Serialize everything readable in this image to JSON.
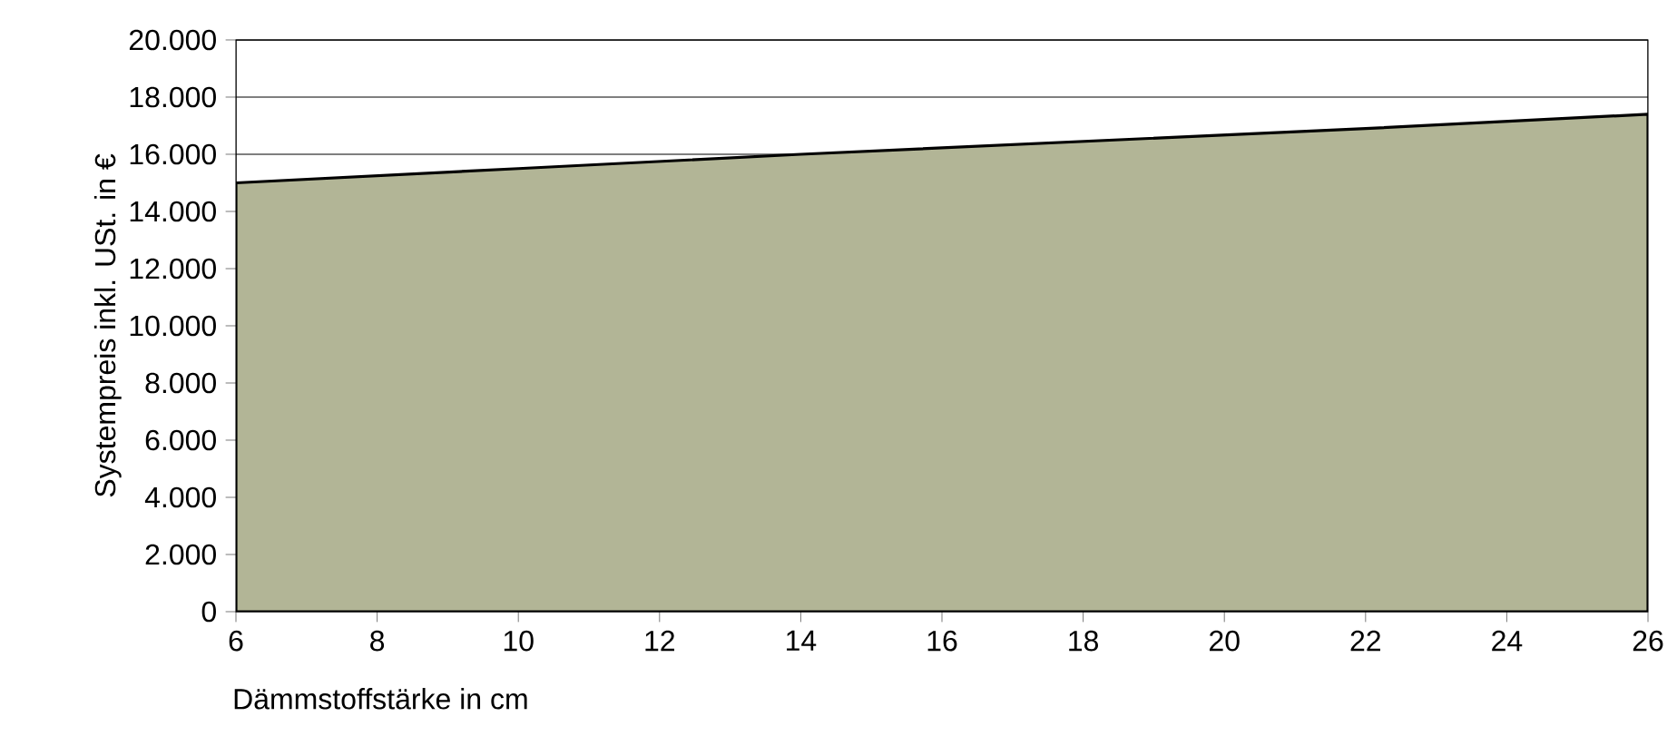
{
  "chart_data": {
    "type": "area",
    "xlabel": "Dämmstoffstärke in cm",
    "ylabel": "Systempreis inkl. USt. in €",
    "x": [
      6,
      10,
      14,
      18,
      22,
      26
    ],
    "series": [
      {
        "color": "#b2b596",
        "values": [
          15000,
          15500,
          16000,
          16450,
          16900,
          17400
        ]
      }
    ],
    "xlim": [
      6,
      26
    ],
    "xticks": [
      6,
      8,
      10,
      12,
      14,
      16,
      18,
      20,
      22,
      24,
      26
    ],
    "ylim": [
      0,
      20000
    ],
    "yticks": [
      0,
      {
        "value": 2000,
        "label": "2.000"
      },
      {
        "value": 4000,
        "label": "4.000"
      },
      {
        "value": 6000,
        "label": "6.000"
      },
      {
        "value": 8000,
        "label": "8.000"
      },
      {
        "value": 10000,
        "label": "10.000"
      },
      {
        "value": 12000,
        "label": "12.000"
      },
      {
        "value": 14000,
        "label": "14.000"
      },
      {
        "value": 16000,
        "label": "16.000"
      },
      {
        "value": 18000,
        "label": "18.000"
      },
      {
        "value": 20000,
        "label": "20.000"
      }
    ],
    "grid": "y"
  }
}
